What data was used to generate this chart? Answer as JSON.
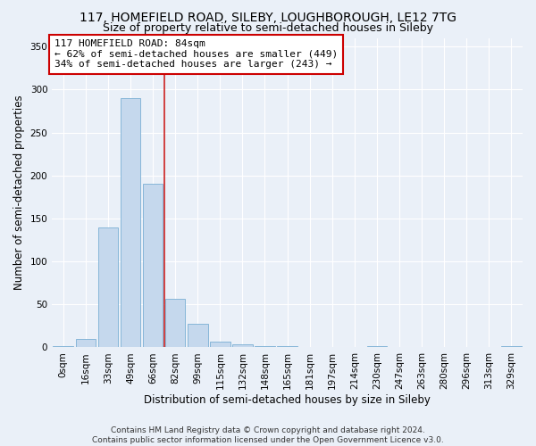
{
  "title_line1": "117, HOMEFIELD ROAD, SILEBY, LOUGHBOROUGH, LE12 7TG",
  "title_line2": "Size of property relative to semi-detached houses in Sileby",
  "xlabel": "Distribution of semi-detached houses by size in Sileby",
  "ylabel": "Number of semi-detached properties",
  "footer_line1": "Contains HM Land Registry data © Crown copyright and database right 2024.",
  "footer_line2": "Contains public sector information licensed under the Open Government Licence v3.0.",
  "annotation_line1": "117 HOMEFIELD ROAD: 84sqm",
  "annotation_line2": "← 62% of semi-detached houses are smaller (449)",
  "annotation_line3": "34% of semi-detached houses are larger (243) →",
  "bin_labels": [
    "0sqm",
    "16sqm",
    "33sqm",
    "49sqm",
    "66sqm",
    "82sqm",
    "99sqm",
    "115sqm",
    "132sqm",
    "148sqm",
    "165sqm",
    "181sqm",
    "197sqm",
    "214sqm",
    "230sqm",
    "247sqm",
    "263sqm",
    "280sqm",
    "296sqm",
    "313sqm",
    "329sqm"
  ],
  "bar_heights": [
    1,
    10,
    140,
    290,
    190,
    57,
    27,
    7,
    4,
    1,
    1,
    0,
    0,
    0,
    2,
    0,
    0,
    0,
    0,
    0,
    1
  ],
  "bar_color_normal": "#c5d8ed",
  "bar_edge_color": "#7aafd4",
  "vline_color": "#cc2222",
  "vline_x": 4.5,
  "ylim": [
    0,
    360
  ],
  "yticks": [
    0,
    50,
    100,
    150,
    200,
    250,
    300,
    350
  ],
  "bg_color": "#eaf0f8",
  "grid_color": "#ffffff",
  "annotation_box_color": "#ffffff",
  "annotation_box_edge": "#cc0000",
  "title_fontsize": 10,
  "subtitle_fontsize": 9,
  "axis_label_fontsize": 8.5,
  "tick_fontsize": 7.5,
  "annotation_fontsize": 8
}
